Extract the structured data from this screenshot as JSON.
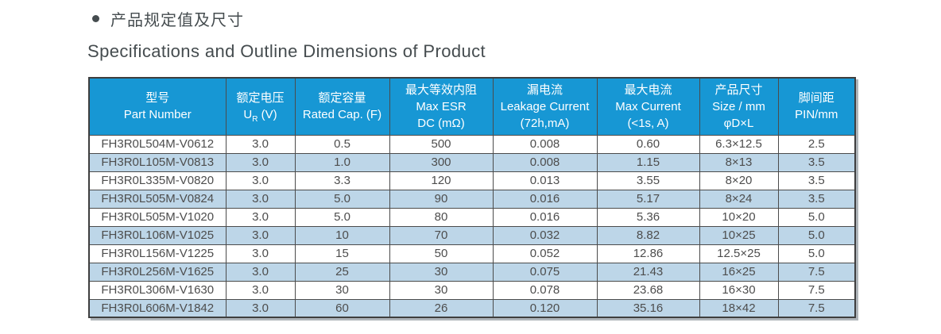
{
  "page": {
    "title_zh": "产品规定值及尺寸",
    "title_en": "Specifications and Outline Dimensions of Product"
  },
  "colors": {
    "header_bg": "#1797d4",
    "header_text": "#ffffff",
    "row_bg": "#ffffff",
    "row_alt_bg": "#bdd6e8",
    "grid_line": "#4b4b4b",
    "body_text": "#4d4d4d",
    "title_text": "#454c4f"
  },
  "table": {
    "headers": [
      {
        "zh": "型号",
        "en": "Part Number"
      },
      {
        "zh": "额定电压",
        "en_pre": "U",
        "en_sub": "R",
        "en_post": " (V)"
      },
      {
        "zh": "额定容量",
        "en": "Rated Cap. (F)"
      },
      {
        "zh": "最大等效内阻",
        "en": "Max ESR",
        "en2": "DC (mΩ)"
      },
      {
        "zh": "漏电流",
        "en": "Leakage Current",
        "en2": "(72h,mA)"
      },
      {
        "zh": "最大电流",
        "en": "Max Current",
        "en2": "(<1s, A)"
      },
      {
        "zh": "产品尺寸",
        "en": "Size / mm",
        "en2": "φD×L"
      },
      {
        "zh": "脚间距",
        "en": "PIN/mm"
      }
    ],
    "rows": [
      [
        "FH3R0L504M-V0612",
        "3.0",
        "0.5",
        "500",
        "0.008",
        "0.60",
        "6.3×12.5",
        "2.5"
      ],
      [
        "FH3R0L105M-V0813",
        "3.0",
        "1.0",
        "300",
        "0.008",
        "1.15",
        "8×13",
        "3.5"
      ],
      [
        "FH3R0L335M-V0820",
        "3.0",
        "3.3",
        "120",
        "0.013",
        "3.55",
        "8×20",
        "3.5"
      ],
      [
        "FH3R0L505M-V0824",
        "3.0",
        "5.0",
        "90",
        "0.016",
        "5.17",
        "8×24",
        "3.5"
      ],
      [
        "FH3R0L505M-V1020",
        "3.0",
        "5.0",
        "80",
        "0.016",
        "5.36",
        "10×20",
        "5.0"
      ],
      [
        "FH3R0L106M-V1025",
        "3.0",
        "10",
        "70",
        "0.032",
        "8.82",
        "10×25",
        "5.0"
      ],
      [
        "FH3R0L156M-V1225",
        "3.0",
        "15",
        "50",
        "0.052",
        "12.86",
        "12.5×25",
        "5.0"
      ],
      [
        "FH3R0L256M-V1625",
        "3.0",
        "25",
        "30",
        "0.075",
        "21.43",
        "16×25",
        "7.5"
      ],
      [
        "FH3R0L306M-V1630",
        "3.0",
        "30",
        "30",
        "0.078",
        "23.68",
        "16×30",
        "7.5"
      ],
      [
        "FH3R0L606M-V1842",
        "3.0",
        "60",
        "26",
        "0.120",
        "35.16",
        "18×42",
        "7.5"
      ]
    ]
  }
}
